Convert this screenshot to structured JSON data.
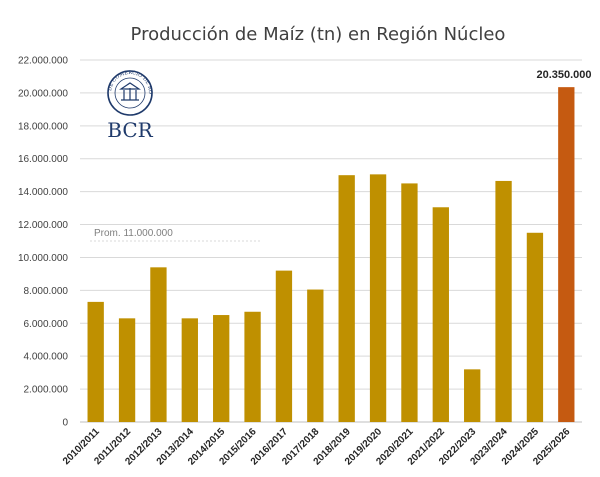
{
  "chart_data": {
    "type": "bar",
    "title": "Producción de Maíz (tn) en Región Núcleo",
    "xlabel": "",
    "ylabel": "",
    "ylim": [
      0,
      22000000
    ],
    "yticks": [
      0,
      2000000,
      4000000,
      6000000,
      8000000,
      10000000,
      12000000,
      14000000,
      16000000,
      18000000,
      20000000,
      22000000
    ],
    "ytick_labels": [
      "0",
      "2.000.000",
      "4.000.000",
      "6.000.000",
      "8.000.000",
      "10.000.000",
      "12.000.000",
      "14.000.000",
      "16.000.000",
      "18.000.000",
      "20.000.000",
      "22.000.000"
    ],
    "grid": true,
    "categories": [
      "2010/2011",
      "2011/2012",
      "2012/2013",
      "2013/2014",
      "2014/2015",
      "2015/2016",
      "2016/2017",
      "2017/2018",
      "2018/2019",
      "2019/2020",
      "2020/2021",
      "2021/2022",
      "2022/2023",
      "2023/2024",
      "2024/2025",
      "2025/2026"
    ],
    "values": [
      7300000,
      6300000,
      9400000,
      6300000,
      6500000,
      6700000,
      9200000,
      8050000,
      15000000,
      15050000,
      14500000,
      13050000,
      3200000,
      14650000,
      11500000,
      20350000
    ],
    "bar_color": "#bf9000",
    "highlight_color": "#c55a11",
    "highlight_index": 15,
    "data_labels": [
      {
        "index": 15,
        "text": "20.350.000"
      }
    ],
    "average": {
      "value": 11000000,
      "label": "Prom. 11.000.000"
    }
  },
  "logo": {
    "text": "BCR",
    "seal_text": "BOLSA DE COMERCIO DE ROSARIO"
  }
}
